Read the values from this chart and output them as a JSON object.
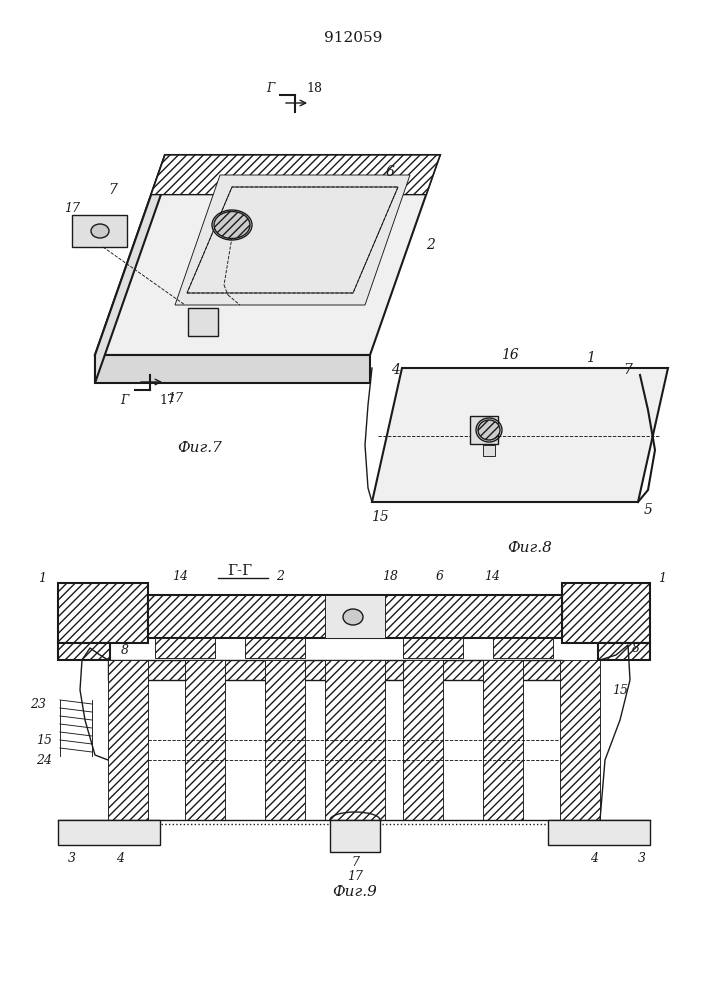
{
  "title": "912059",
  "fig1_label": "Фиг.7",
  "fig2_label": "Фиг.8",
  "fig3_label": "Фиг.9",
  "fig3_section": "Г-Г"
}
